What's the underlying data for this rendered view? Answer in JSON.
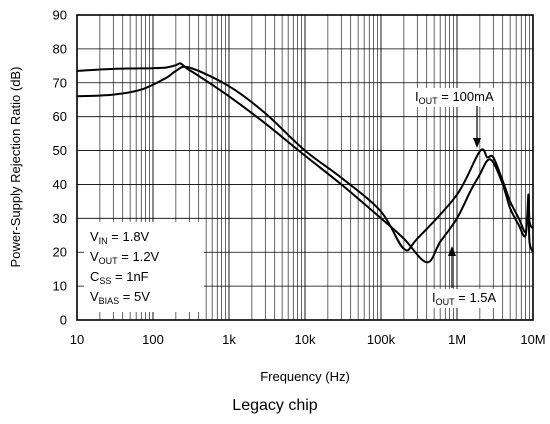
{
  "chart_data": {
    "type": "line",
    "title": "",
    "xlabel": "Frequency (Hz)",
    "ylabel": "Power-Supply Rejection Ratio (dB)",
    "xscale": "log",
    "xlim": [
      10,
      10000000
    ],
    "ylim": [
      0,
      90
    ],
    "grid": true,
    "x_tick_labels": [
      "10",
      "100",
      "1k",
      "10k",
      "100k",
      "1M",
      "10M"
    ],
    "y_ticks": [
      0,
      10,
      20,
      30,
      40,
      50,
      60,
      70,
      80,
      90
    ],
    "y_tick_labels": [
      "0",
      "10",
      "20",
      "30",
      "40",
      "50",
      "60",
      "70",
      "80",
      "90"
    ],
    "series": [
      {
        "name": "I_OUT = 100mA",
        "points": [
          [
            10,
            73.5
          ],
          [
            30,
            74.1
          ],
          [
            100,
            74.3
          ],
          [
            150,
            74.5
          ],
          [
            200,
            75.2
          ],
          [
            230,
            75.7
          ],
          [
            280,
            74.2
          ],
          [
            400,
            72
          ],
          [
            1000,
            66
          ],
          [
            3000,
            58
          ],
          [
            10000,
            48.5
          ],
          [
            30000,
            40
          ],
          [
            100000,
            30
          ],
          [
            200000,
            24
          ],
          [
            400000,
            17
          ],
          [
            600000,
            23
          ],
          [
            1000000,
            30
          ],
          [
            1500000,
            38
          ],
          [
            2000000,
            43
          ],
          [
            2500000,
            47
          ],
          [
            3000000,
            46.5
          ],
          [
            4000000,
            40
          ],
          [
            5000000,
            33
          ],
          [
            6500000,
            28
          ],
          [
            8000000,
            25
          ],
          [
            8700000,
            37
          ],
          [
            9000000,
            29
          ],
          [
            10000000,
            27
          ]
        ]
      },
      {
        "name": "I_OUT = 1.5A",
        "points": [
          [
            10,
            66
          ],
          [
            30,
            66.5
          ],
          [
            70,
            68
          ],
          [
            150,
            71.5
          ],
          [
            200,
            73.5
          ],
          [
            300,
            74.5
          ],
          [
            1000,
            69
          ],
          [
            3000,
            61
          ],
          [
            10000,
            50
          ],
          [
            30000,
            42
          ],
          [
            100000,
            32
          ],
          [
            200000,
            21
          ],
          [
            300000,
            24
          ],
          [
            1000000,
            37
          ],
          [
            2000000,
            49.8
          ],
          [
            2500000,
            48
          ],
          [
            3000000,
            48
          ],
          [
            4000000,
            41
          ],
          [
            5000000,
            35
          ],
          [
            6500000,
            30
          ],
          [
            8000000,
            26
          ],
          [
            8700000,
            33
          ],
          [
            9000000,
            23
          ],
          [
            10000000,
            20
          ]
        ]
      }
    ],
    "annotations": {
      "curve_100ma": {
        "main": "I",
        "sub": "OUT",
        "rest": " = 100mA"
      },
      "curve_1_5a": {
        "main": "I",
        "sub": "OUT",
        "rest": " = 1.5A"
      },
      "conditions": [
        {
          "main": "V",
          "sub": "IN",
          "rest": " = 1.8V"
        },
        {
          "main": "V",
          "sub": "OUT",
          "rest": " = 1.2V"
        },
        {
          "main": "C",
          "sub": "SS",
          "rest": " = 1nF"
        },
        {
          "main": "V",
          "sub": "BIAS",
          "rest": " = 5V"
        }
      ]
    }
  },
  "caption": "Legacy chip"
}
